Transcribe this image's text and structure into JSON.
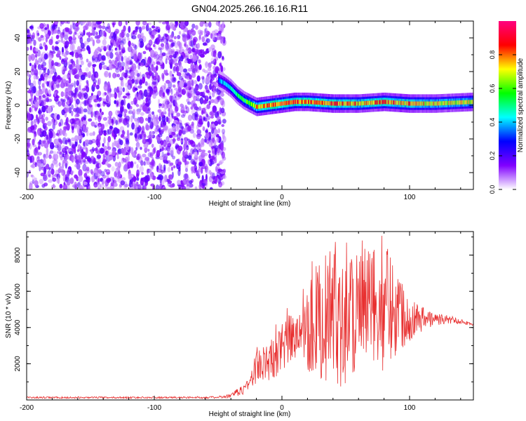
{
  "title": "GN04.2025.266.16.16.R11",
  "chart_data": [
    {
      "type": "heatmap",
      "xlabel": "Height of straight line (km)",
      "ylabel": "Frequency (Hz)",
      "xlim": [
        -200,
        150
      ],
      "ylim": [
        -50,
        50
      ],
      "xticks": [
        -200,
        -100,
        0,
        100
      ],
      "xtick_labels": [
        "-200",
        "-100",
        "0",
        "100"
      ],
      "yticks": [
        -40,
        -20,
        0,
        20,
        40
      ],
      "ytick_labels": [
        "-40",
        "-20",
        "0",
        "20",
        "40"
      ],
      "colorbar": {
        "label": "Normalized spectral amplitude",
        "range": [
          0,
          1
        ],
        "ticks": [
          0.0,
          0.2,
          0.4,
          0.6,
          0.8
        ],
        "tick_labels": [
          "0.0",
          "0.2",
          "0.4",
          "0.6",
          "0.8"
        ],
        "colors": [
          "#ffffff",
          "#8000ff",
          "#0000ff",
          "#00ffff",
          "#00ff00",
          "#ffff00",
          "#ff0000",
          "#ff0080"
        ]
      },
      "noise_region_x": [
        -200,
        -45
      ],
      "noise_level": 0.12,
      "signal_track": {
        "x": [
          -50,
          -45,
          -40,
          -35,
          -30,
          -25,
          -20,
          -10,
          0,
          10,
          20,
          40,
          60,
          80,
          100,
          120,
          150
        ],
        "y": [
          15,
          13,
          10,
          6,
          3,
          1,
          -1,
          0,
          1,
          2,
          2,
          1,
          1,
          2,
          1,
          1,
          2
        ],
        "amplitude": [
          0.35,
          0.4,
          0.45,
          0.5,
          0.55,
          0.6,
          0.75,
          0.8,
          0.85,
          0.8,
          0.8,
          0.8,
          0.75,
          0.8,
          0.75,
          0.7,
          0.7
        ],
        "bandwidth_hz": 5
      },
      "grid": false
    },
    {
      "type": "line",
      "xlabel": "Height of straight line (km)",
      "ylabel": "SNR (10 * v/v)",
      "xlim": [
        -200,
        150
      ],
      "ylim": [
        0,
        9300
      ],
      "xticks": [
        -200,
        -100,
        0,
        100
      ],
      "xtick_labels": [
        "-200",
        "-100",
        "0",
        "100"
      ],
      "yticks": [
        2000,
        4000,
        6000,
        8000
      ],
      "ytick_labels": [
        "2000",
        "4000",
        "6000",
        "8000"
      ],
      "color": "#e83030",
      "envelope": {
        "x": [
          -200,
          -150,
          -100,
          -50,
          -40,
          -30,
          -25,
          -20,
          -10,
          0,
          10,
          20,
          30,
          40,
          50,
          60,
          70,
          80,
          90,
          100,
          110,
          120,
          130,
          140,
          150
        ],
        "baseline": [
          80,
          80,
          80,
          80,
          100,
          300,
          600,
          800,
          1000,
          1500,
          2000,
          1500,
          1000,
          800,
          700,
          900,
          1200,
          1600,
          2400,
          3200,
          3800,
          4100,
          4200,
          4200,
          4100
        ],
        "peak": [
          180,
          180,
          180,
          200,
          350,
          900,
          1400,
          3000,
          3000,
          5500,
          4500,
          8000,
          7600,
          8700,
          9200,
          9000,
          8400,
          9300,
          7500,
          5800,
          5200,
          4800,
          4700,
          4500,
          4200
        ]
      },
      "grid": false
    }
  ]
}
